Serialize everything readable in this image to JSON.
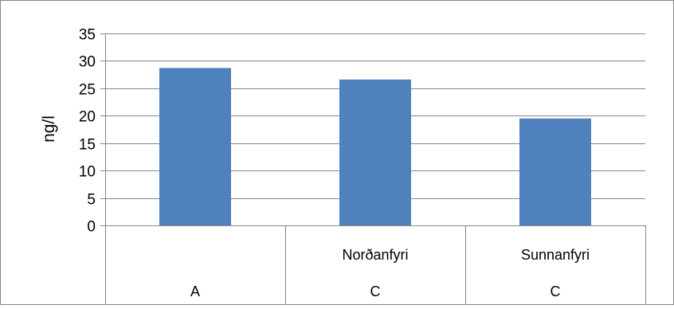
{
  "chart_data": {
    "type": "bar",
    "categories": [
      {
        "row1": "",
        "row2": "A"
      },
      {
        "row1": "Norðanfyri",
        "row2": "C"
      },
      {
        "row1": "Sunnanfyri",
        "row2": "C"
      }
    ],
    "values": [
      28.7,
      26.6,
      19.5
    ],
    "title": "",
    "xlabel": "",
    "ylabel": "ng/l",
    "ylim": [
      0,
      35
    ],
    "yticks": [
      0,
      5,
      10,
      15,
      20,
      25,
      30,
      35
    ],
    "grid": true,
    "legend": "none",
    "colors": {
      "bar": "#4f81bd",
      "grid": "#868686",
      "axis": "#868686",
      "frame": "#868686"
    }
  }
}
